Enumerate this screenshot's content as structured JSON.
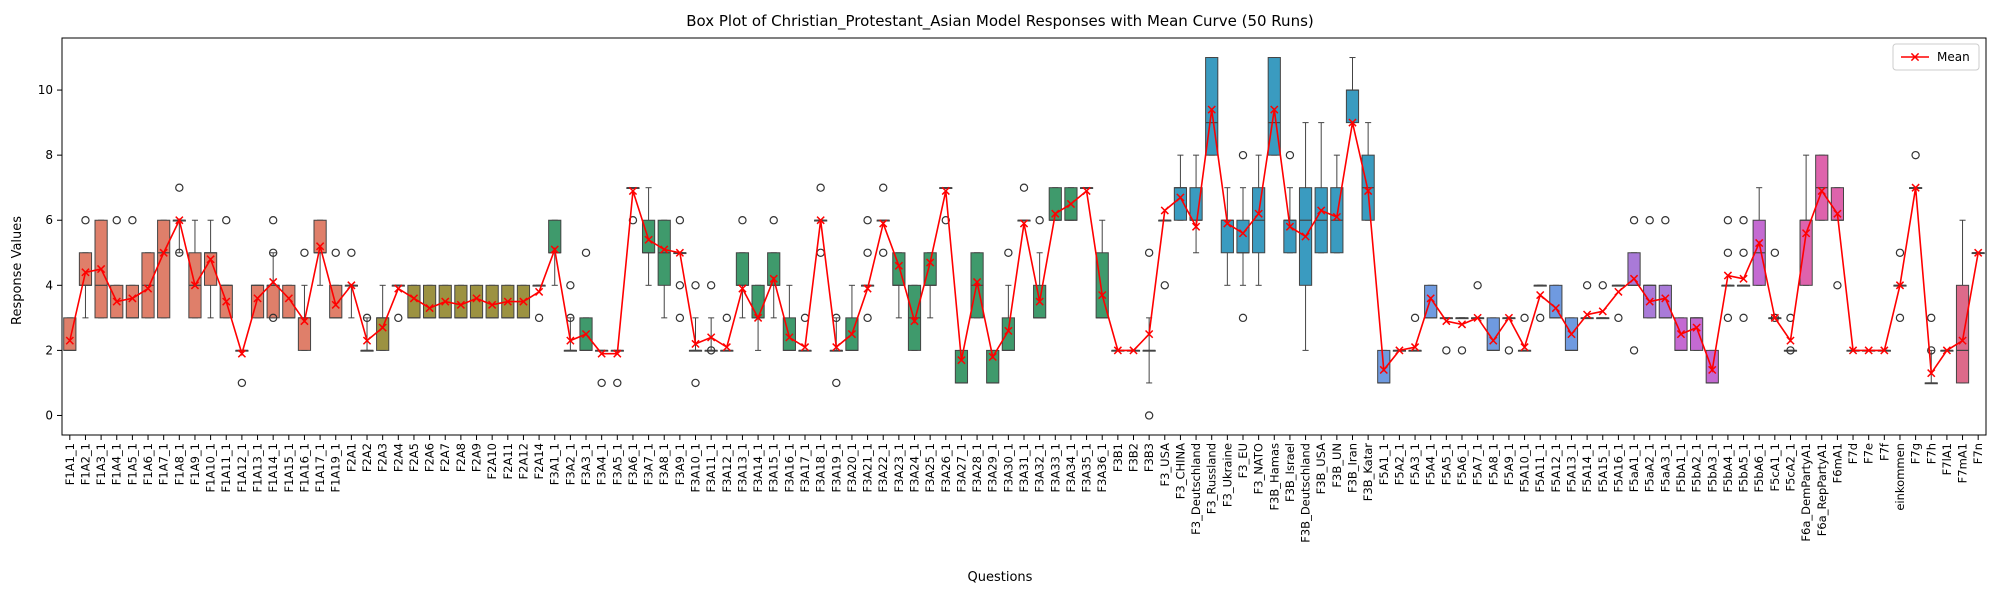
{
  "chart_data": {
    "type": "box",
    "title": "Box Plot of Christian_Protestant_Asian Model Responses with Mean Curve (50 Runs)",
    "xlabel": "Questions",
    "ylabel": "Response Values",
    "ylim": [
      -0.6,
      11.6
    ],
    "yticks": [
      0,
      2,
      4,
      6,
      8,
      10
    ],
    "legend": {
      "position": "top-right",
      "entries": [
        "Mean"
      ]
    },
    "mean_color": "#ff0000",
    "categories": [
      "F1A1_1",
      "F1A2_1",
      "F1A3_1",
      "F1A4_1",
      "F1A5_1",
      "F1A6_1",
      "F1A7_1",
      "F1A8_1",
      "F1A9_1",
      "F1A10_1",
      "F1A11_1",
      "F1A12_1",
      "F1A13_1",
      "F1A14_1",
      "F1A15_1",
      "F1A16_1",
      "F1A17_1",
      "F1A19_1",
      "F2A1",
      "F2A2",
      "F2A3",
      "F2A4",
      "F2A5",
      "F2A6",
      "F2A7",
      "F2A8",
      "F2A9",
      "F2A10",
      "F2A11",
      "F2A12",
      "F2A14",
      "F3A1_1",
      "F3A2_1",
      "F3A3_1",
      "F3A4_1",
      "F3A5_1",
      "F3A6_1",
      "F3A7_1",
      "F3A8_1",
      "F3A9_1",
      "F3A10_1",
      "F3A11_1",
      "F3A12_1",
      "F3A13_1",
      "F3A14_1",
      "F3A15_1",
      "F3A16_1",
      "F3A17_1",
      "F3A18_1",
      "F3A19_1",
      "F3A20_1",
      "F3A21_1",
      "F3A22_1",
      "F3A23_1",
      "F3A24_1",
      "F3A25_1",
      "F3A26_1",
      "F3A27_1",
      "F3A28_1",
      "F3A29_1",
      "F3A30_1",
      "F3A31_1",
      "F3A32_1",
      "F3A33_1",
      "F3A34_1",
      "F3A35_1",
      "F3A36_1",
      "F3B1",
      "F3B2",
      "F3B3",
      "F3_USA",
      "F3_CHINA",
      "F3_Deutschland",
      "F3_Russland",
      "F3_Ukraine",
      "F3_EU",
      "F3_NATO",
      "F3B_Hamas",
      "F3B_Israel",
      "F3B_Deutschland",
      "F3B_USA",
      "F3B_UN",
      "F3B_Iran",
      "F3B_Katar",
      "F5A1_1",
      "F5A2_1",
      "F5A3_1",
      "F5A4_1",
      "F5A5_1",
      "F5A6_1",
      "F5A7_1",
      "F5A8_1",
      "F5A9_1",
      "F5A10_1",
      "F5A11_1",
      "F5A12_1",
      "F5A13_1",
      "F5A14_1",
      "F5A15_1",
      "F5A16_1",
      "F5aA1_1",
      "F5aA2_1",
      "F5aA3_1",
      "F5bA1_1",
      "F5bA2_1",
      "F5bA3_1",
      "F5bA4_1",
      "F5bA5_1",
      "F5bA6_1",
      "F5cA1_1",
      "F5cA2_1",
      "F6a_DemPartyA1",
      "F6a_RepPartyA1",
      "F6mA1",
      "F7d",
      "F7e",
      "F7f",
      "einkommen",
      "F7g",
      "F7h",
      "F7lA1",
      "F7mA1",
      "F7n"
    ],
    "box_stats": [
      [
        2,
        2,
        2,
        3,
        3
      ],
      [
        3,
        4,
        4,
        5,
        5
      ],
      [
        3,
        3,
        4,
        6,
        6
      ],
      [
        3,
        3,
        3,
        4,
        4
      ],
      [
        3,
        3,
        3,
        4,
        4
      ],
      [
        3,
        3,
        4,
        5,
        5
      ],
      [
        3,
        3,
        5,
        6,
        6
      ],
      [
        5,
        6,
        6,
        6,
        6
      ],
      [
        3,
        3,
        4,
        5,
        6
      ],
      [
        3,
        4,
        5,
        5,
        6
      ],
      [
        3,
        3,
        4,
        4,
        4
      ],
      [
        2,
        2,
        2,
        2,
        2
      ],
      [
        3,
        3,
        4,
        4,
        4
      ],
      [
        3,
        3,
        4,
        4,
        5
      ],
      [
        3,
        3,
        3,
        4,
        4
      ],
      [
        2,
        2,
        3,
        3,
        4
      ],
      [
        4,
        5,
        5,
        6,
        6
      ],
      [
        3,
        3,
        3,
        4,
        4
      ],
      [
        3,
        4,
        4,
        4,
        4
      ],
      [
        2,
        2,
        2,
        2,
        3
      ],
      [
        2,
        2,
        3,
        3,
        4
      ],
      [
        4,
        4,
        4,
        4,
        4
      ],
      [
        3,
        3,
        3,
        4,
        4
      ],
      [
        3,
        3,
        3,
        4,
        4
      ],
      [
        3,
        3,
        3,
        4,
        4
      ],
      [
        3,
        3,
        3,
        4,
        4
      ],
      [
        3,
        3,
        3,
        4,
        4
      ],
      [
        3,
        3,
        3,
        4,
        4
      ],
      [
        3,
        3,
        3,
        4,
        4
      ],
      [
        3,
        3,
        3,
        4,
        4
      ],
      [
        4,
        4,
        4,
        4,
        4
      ],
      [
        4,
        5,
        5,
        6,
        6
      ],
      [
        2,
        2,
        2,
        2,
        3
      ],
      [
        2,
        2,
        2,
        3,
        3
      ],
      [
        2,
        2,
        2,
        2,
        2
      ],
      [
        2,
        2,
        2,
        2,
        2
      ],
      [
        7,
        7,
        7,
        7,
        7
      ],
      [
        4,
        5,
        5,
        6,
        7
      ],
      [
        3,
        4,
        5,
        6,
        6
      ],
      [
        5,
        5,
        5,
        5,
        5
      ],
      [
        2,
        2,
        2,
        2,
        3
      ],
      [
        2,
        2,
        2,
        2,
        3
      ],
      [
        2,
        2,
        2,
        2,
        2
      ],
      [
        3,
        4,
        4,
        5,
        5
      ],
      [
        2,
        3,
        3,
        4,
        4
      ],
      [
        3,
        4,
        4,
        5,
        5
      ],
      [
        2,
        2,
        2,
        3,
        4
      ],
      [
        2,
        2,
        2,
        2,
        2
      ],
      [
        6,
        6,
        6,
        6,
        6
      ],
      [
        2,
        2,
        2,
        2,
        3
      ],
      [
        2,
        2,
        2,
        3,
        4
      ],
      [
        4,
        4,
        4,
        4,
        4
      ],
      [
        6,
        6,
        6,
        6,
        6
      ],
      [
        3,
        4,
        4,
        5,
        5
      ],
      [
        2,
        2,
        3,
        4,
        4
      ],
      [
        3,
        4,
        4,
        5,
        5
      ],
      [
        7,
        7,
        7,
        7,
        7
      ],
      [
        1,
        1,
        1,
        2,
        2
      ],
      [
        3,
        3,
        4,
        5,
        5
      ],
      [
        1,
        1,
        1,
        2,
        2
      ],
      [
        2,
        2,
        2,
        3,
        4
      ],
      [
        6,
        6,
        6,
        6,
        6
      ],
      [
        3,
        3,
        3,
        4,
        5
      ],
      [
        6,
        6,
        6,
        7,
        7
      ],
      [
        6,
        6,
        6,
        7,
        7
      ],
      [
        7,
        7,
        7,
        7,
        7
      ],
      [
        3,
        3,
        3,
        5,
        6
      ],
      [
        2,
        2,
        2,
        2,
        2
      ],
      [
        2,
        2,
        2,
        2,
        2
      ],
      [
        1,
        2,
        2,
        2,
        3
      ],
      [
        6,
        6,
        6,
        6,
        6
      ],
      [
        6,
        6,
        7,
        7,
        8
      ],
      [
        5,
        6,
        6,
        7,
        8
      ],
      [
        8,
        8,
        9,
        11,
        11
      ],
      [
        4,
        5,
        6,
        6,
        7
      ],
      [
        4,
        5,
        5,
        6,
        7
      ],
      [
        4,
        5,
        6,
        7,
        8
      ],
      [
        8,
        8,
        9,
        11,
        11
      ],
      [
        5,
        5,
        6,
        6,
        7
      ],
      [
        2,
        4,
        6,
        7,
        9
      ],
      [
        5,
        5,
        6,
        7,
        9
      ],
      [
        5,
        5,
        6,
        7,
        8
      ],
      [
        9,
        9,
        10,
        10,
        11
      ],
      [
        6,
        6,
        7,
        8,
        9
      ],
      [
        1,
        1,
        1,
        2,
        2
      ],
      [
        2,
        2,
        2,
        2,
        2
      ],
      [
        2,
        2,
        2,
        2,
        2
      ],
      [
        3,
        3,
        3,
        4,
        4
      ],
      [
        3,
        3,
        3,
        3,
        3
      ],
      [
        3,
        3,
        3,
        3,
        3
      ],
      [
        3,
        3,
        3,
        3,
        3
      ],
      [
        2,
        2,
        2,
        3,
        3
      ],
      [
        3,
        3,
        3,
        3,
        3
      ],
      [
        2,
        2,
        2,
        2,
        2
      ],
      [
        4,
        4,
        4,
        4,
        4
      ],
      [
        3,
        3,
        3,
        4,
        4
      ],
      [
        2,
        2,
        2,
        3,
        3
      ],
      [
        3,
        3,
        3,
        3,
        3
      ],
      [
        3,
        3,
        3,
        3,
        3
      ],
      [
        4,
        4,
        4,
        4,
        4
      ],
      [
        4,
        4,
        4,
        5,
        5
      ],
      [
        3,
        3,
        4,
        4,
        4
      ],
      [
        3,
        3,
        3,
        4,
        4
      ],
      [
        2,
        2,
        2,
        3,
        3
      ],
      [
        2,
        2,
        3,
        3,
        3
      ],
      [
        1,
        1,
        1,
        2,
        2
      ],
      [
        4,
        4,
        4,
        4,
        4
      ],
      [
        4,
        4,
        4,
        4,
        4
      ],
      [
        4,
        4,
        5,
        6,
        7
      ],
      [
        3,
        3,
        3,
        3,
        3
      ],
      [
        2,
        2,
        2,
        2,
        2
      ],
      [
        4,
        4,
        6,
        6,
        8
      ],
      [
        6,
        6,
        7,
        8,
        8
      ],
      [
        6,
        6,
        6,
        7,
        7
      ],
      [
        2,
        2,
        2,
        2,
        2
      ],
      [
        2,
        2,
        2,
        2,
        2
      ],
      [
        2,
        2,
        2,
        2,
        2
      ],
      [
        4,
        4,
        4,
        4,
        4
      ],
      [
        7,
        7,
        7,
        7,
        7
      ],
      [
        1,
        1,
        1,
        1,
        2
      ],
      [
        2,
        2,
        2,
        2,
        2
      ],
      [
        1,
        1,
        2,
        4,
        6
      ],
      [
        5,
        5,
        5,
        5,
        5
      ]
    ],
    "means": [
      2.3,
      4.4,
      4.5,
      3.5,
      3.6,
      3.9,
      5.0,
      6.0,
      4.0,
      4.8,
      3.5,
      1.9,
      3.6,
      4.1,
      3.6,
      2.9,
      5.2,
      3.4,
      4.0,
      2.3,
      2.7,
      3.9,
      3.6,
      3.3,
      3.5,
      3.4,
      3.6,
      3.4,
      3.5,
      3.5,
      3.8,
      5.1,
      2.3,
      2.5,
      1.9,
      1.9,
      6.9,
      5.4,
      5.1,
      5.0,
      2.2,
      2.4,
      2.1,
      3.9,
      3.0,
      4.2,
      2.4,
      2.1,
      6.0,
      2.1,
      2.5,
      3.9,
      5.9,
      4.6,
      2.9,
      4.7,
      6.9,
      1.7,
      4.1,
      1.8,
      2.6,
      5.9,
      3.5,
      6.2,
      6.5,
      6.9,
      3.7,
      2.0,
      2.0,
      2.5,
      6.3,
      6.7,
      5.8,
      9.4,
      5.9,
      5.6,
      6.2,
      9.4,
      5.8,
      5.5,
      6.3,
      6.1,
      9.0,
      6.9,
      1.4,
      2.0,
      2.1,
      3.6,
      2.9,
      2.8,
      3.0,
      2.3,
      3.0,
      2.1,
      3.7,
      3.3,
      2.5,
      3.1,
      3.2,
      3.8,
      4.2,
      3.5,
      3.6,
      2.5,
      2.7,
      1.4,
      4.3,
      4.2,
      5.3,
      3.0,
      2.3,
      5.6,
      6.9,
      6.2,
      2.0,
      2.0,
      2.0,
      4.0,
      7.0,
      1.3,
      2.0,
      2.3,
      5.0
    ],
    "outliers": [
      [],
      [
        6
      ],
      [],
      [
        6
      ],
      [
        6
      ],
      [],
      [],
      [
        5,
        7
      ],
      [],
      [],
      [
        6
      ],
      [
        1
      ],
      [],
      [
        6,
        5,
        3
      ],
      [],
      [
        5
      ],
      [],
      [
        5
      ],
      [
        5
      ],
      [
        3
      ],
      [],
      [
        3
      ],
      [],
      [],
      [],
      [],
      [],
      [],
      [],
      [],
      [
        3
      ],
      [],
      [
        4,
        3
      ],
      [
        5
      ],
      [
        1
      ],
      [
        1
      ],
      [
        6
      ],
      [],
      [],
      [
        6,
        4,
        3
      ],
      [
        4,
        1
      ],
      [
        4,
        2
      ],
      [
        3
      ],
      [
        6
      ],
      [],
      [
        6
      ],
      [],
      [
        3
      ],
      [
        7,
        5
      ],
      [
        3,
        1
      ],
      [],
      [
        6,
        5,
        3
      ],
      [
        7,
        5
      ],
      [],
      [],
      [],
      [
        6
      ],
      [],
      [],
      [],
      [
        5
      ],
      [
        7
      ],
      [
        6
      ],
      [],
      [],
      [],
      [],
      [],
      [],
      [
        5,
        0
      ],
      [
        4
      ],
      [],
      [],
      [],
      [],
      [
        8,
        3
      ],
      [],
      [],
      [
        8
      ],
      [],
      [],
      [],
      [],
      [],
      [],
      [],
      [
        3
      ],
      [],
      [
        2
      ],
      [
        2
      ],
      [
        4
      ],
      [],
      [
        2
      ],
      [
        3
      ],
      [
        3
      ],
      [],
      [],
      [
        4
      ],
      [
        4
      ],
      [
        3
      ],
      [
        6,
        2
      ],
      [
        6
      ],
      [
        6
      ],
      [],
      [],
      [],
      [
        6,
        5,
        3
      ],
      [
        6,
        5,
        3
      ],
      [],
      [
        5,
        3
      ],
      [
        3,
        2
      ],
      [],
      [],
      [
        4
      ],
      [],
      [],
      [],
      [
        5,
        3
      ],
      [
        8
      ],
      [
        3,
        2
      ],
      [],
      [],
      []
    ]
  }
}
